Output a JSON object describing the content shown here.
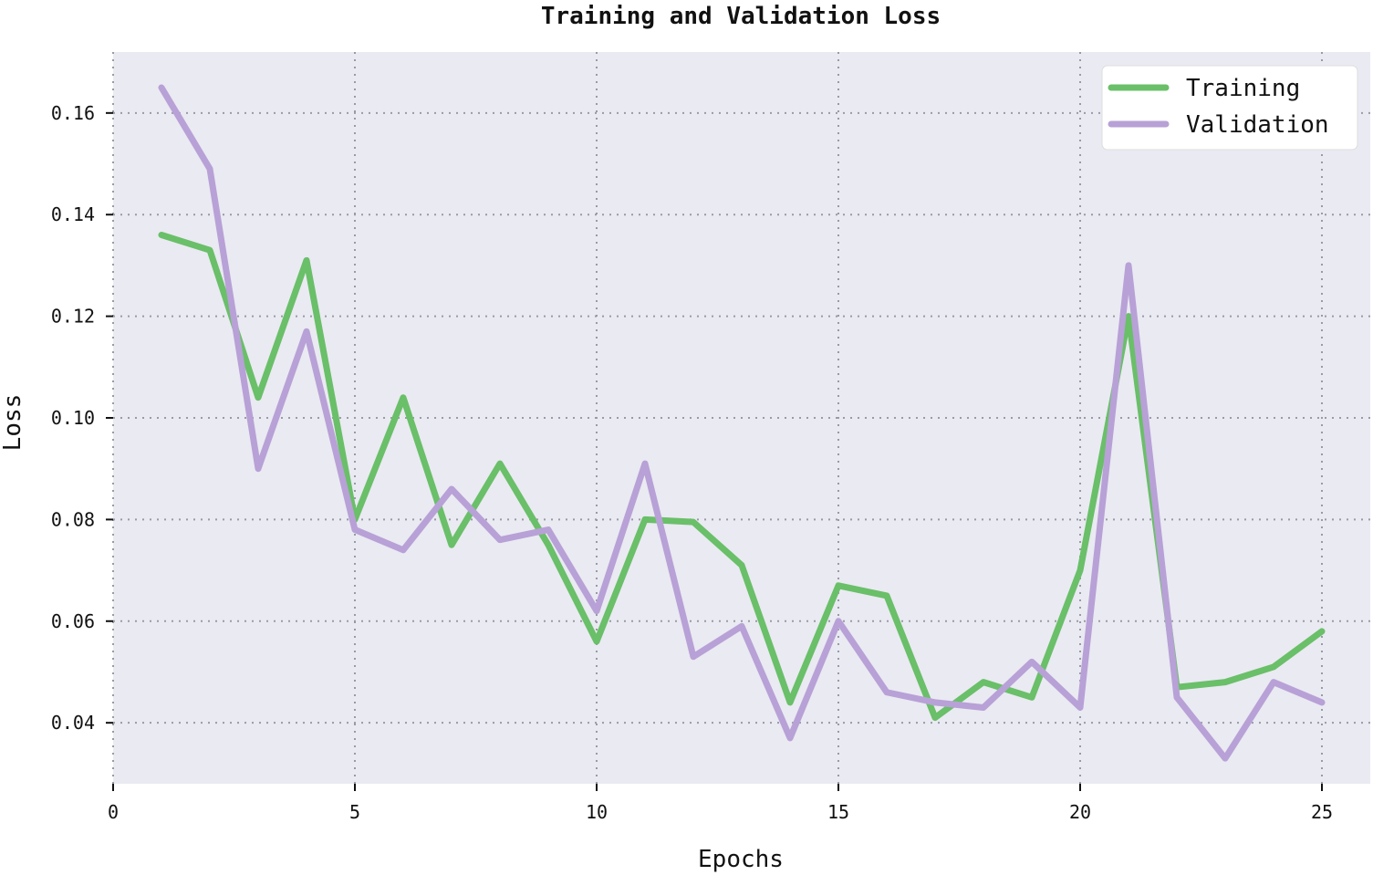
{
  "chart_data": {
    "type": "line",
    "title": "Training and Validation Loss",
    "xlabel": "Epochs",
    "ylabel": "Loss",
    "xlim": [
      0,
      26
    ],
    "ylim": [
      0.028,
      0.172
    ],
    "xticks": [
      0,
      5,
      10,
      15,
      20,
      25
    ],
    "yticks": [
      0.04,
      0.06,
      0.08,
      0.1,
      0.12,
      0.14,
      0.16
    ],
    "ytick_labels": [
      "0.04",
      "0.06",
      "0.08",
      "0.10",
      "0.12",
      "0.14",
      "0.16"
    ],
    "grid": true,
    "legend_position": "top-right",
    "x": [
      1,
      2,
      3,
      4,
      5,
      6,
      7,
      8,
      9,
      10,
      11,
      12,
      13,
      14,
      15,
      16,
      17,
      18,
      19,
      20,
      21,
      22,
      23,
      24,
      25
    ],
    "series": [
      {
        "name": "Training",
        "color": "#6abf69",
        "values": [
          0.136,
          0.133,
          0.104,
          0.131,
          0.08,
          0.104,
          0.075,
          0.091,
          0.075,
          0.056,
          0.08,
          0.0795,
          0.071,
          0.044,
          0.067,
          0.065,
          0.041,
          0.048,
          0.045,
          0.07,
          0.12,
          0.047,
          0.048,
          0.051,
          0.058
        ]
      },
      {
        "name": "Validation",
        "color": "#b8a1d6",
        "values": [
          0.165,
          0.149,
          0.09,
          0.117,
          0.078,
          0.074,
          0.086,
          0.076,
          0.078,
          0.062,
          0.091,
          0.053,
          0.059,
          0.037,
          0.06,
          0.046,
          0.044,
          0.043,
          0.052,
          0.043,
          0.13,
          0.045,
          0.033,
          0.048,
          0.044
        ]
      }
    ]
  }
}
